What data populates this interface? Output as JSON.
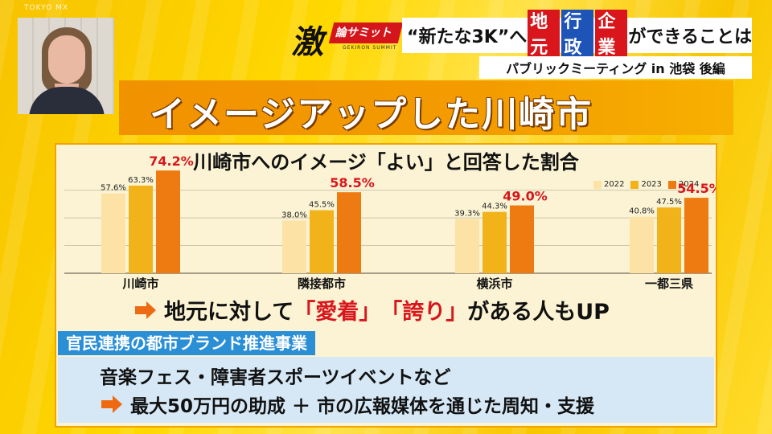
{
  "watermark": "TOKYO MX",
  "logo": {
    "glyph": "激",
    "text": "論サミット",
    "sub": "GEKIRON SUMMIT"
  },
  "topic": {
    "prefix": "“新たな3K”へ",
    "w1": "地元",
    "w2": "行政",
    "w3": "企業",
    "suffix": "ができることは"
  },
  "subtitle": "パブリックミーティング in 池袋 後編",
  "title": "イメージアップした川崎市",
  "colors": {
    "y2022": "#fde2a6",
    "y2023": "#f2b21a",
    "y2024": "#ee7a12",
    "highlight": "#d8161c",
    "accent_blue": "#2b8fd6"
  },
  "chart_data": {
    "type": "bar",
    "title": "川崎市へのイメージ「よい」と回答した割合",
    "categories": [
      "川崎市",
      "隣接都市",
      "横浜市",
      "一都三県"
    ],
    "series": [
      {
        "name": "2022",
        "values": [
          57.6,
          38.0,
          39.3,
          40.8
        ]
      },
      {
        "name": "2023",
        "values": [
          63.3,
          45.5,
          44.3,
          47.5
        ]
      },
      {
        "name": "2024",
        "values": [
          74.2,
          58.5,
          49.0,
          54.5
        ]
      }
    ],
    "data_labels": [
      [
        "57.6%",
        "63.3%",
        "74.2%"
      ],
      [
        "38.0%",
        "45.5%",
        "58.5%"
      ],
      [
        "39.3%",
        "44.3%",
        "49.0%"
      ],
      [
        "40.8%",
        "47.5%",
        "54.5%"
      ]
    ],
    "ylim": [
      0,
      80
    ],
    "grid": true,
    "legend_position": "top-right"
  },
  "claim": {
    "pre": "地元に対して",
    "q1": "「愛着」",
    "q2": "「誇り」",
    "post": "がある人もUP"
  },
  "section": {
    "label": "官民連携の都市ブランド推進事業",
    "line1": "音楽フェス・障害者スポーツイベントなど",
    "line2": "最大50万円の助成 ＋ 市の広報媒体を通じた周知・支援"
  }
}
